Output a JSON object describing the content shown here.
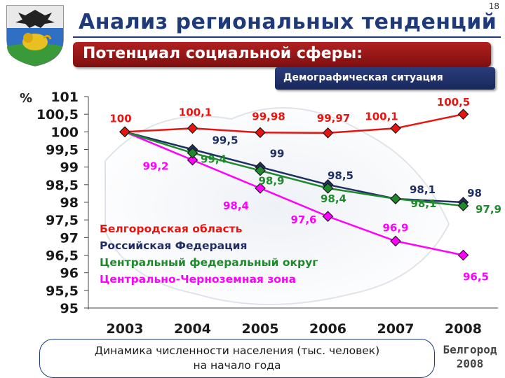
{
  "slide_number": "18",
  "title": "Анализ региональных тенденций",
  "section_title": "Потенциал социальной сферы:",
  "badge": "Демографическая ситуация",
  "footer": {
    "line1": "Динамика численности населения (тыс. человек)",
    "line2": "на начало года"
  },
  "city": {
    "line1": "Белгород",
    "line2": "2008"
  },
  "chart_data": {
    "type": "line",
    "ylabel": "%",
    "ylim": [
      95,
      101
    ],
    "yticks": [
      "101",
      "100,5",
      "100",
      "99,5",
      "99",
      "98,5",
      "98",
      "97,5",
      "97",
      "96,5",
      "96",
      "95,5",
      "95"
    ],
    "categories": [
      "2003",
      "2004",
      "2005",
      "2006",
      "2007",
      "2008"
    ],
    "series": [
      {
        "name": "Белгородская область",
        "color": "#e8140f",
        "marker": "diamond",
        "values": [
          100,
          100.1,
          99.98,
          99.97,
          100.1,
          100.5
        ],
        "labels": [
          "100",
          "100,1",
          "99,98",
          "99,97",
          "100,1",
          "100,5"
        ]
      },
      {
        "name": "Российская Федерация",
        "color": "#1f2f66",
        "marker": "diamond",
        "values": [
          100,
          99.5,
          99,
          98.5,
          98.1,
          98
        ],
        "labels": [
          "",
          "99,5",
          "99",
          "98,5",
          "98,1",
          "98"
        ]
      },
      {
        "name": "Центральный федеральный округ",
        "color": "#1e8a2c",
        "marker": "diamond",
        "values": [
          100,
          99.4,
          98.9,
          98.4,
          98.1,
          97.9
        ],
        "labels": [
          "",
          "99,4",
          "98,9",
          "98,4",
          "98,1",
          "97,9"
        ]
      },
      {
        "name": "Центрально-Черноземная зона",
        "color": "#ff00ff",
        "marker": "diamond",
        "values": [
          100,
          99.2,
          98.4,
          97.6,
          96.9,
          96.5
        ],
        "labels": [
          "",
          "99,2",
          "98,4",
          "97,6",
          "96,9",
          "96,5"
        ]
      }
    ]
  }
}
